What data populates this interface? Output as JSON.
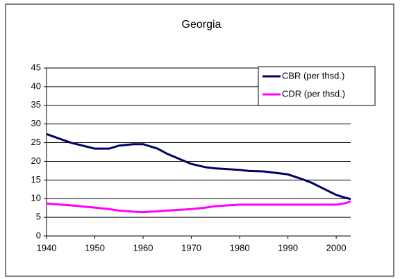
{
  "chart_data": {
    "type": "line",
    "title": "Georgia",
    "x": [
      1940,
      1945,
      1950,
      1953,
      1955,
      1958,
      1960,
      1963,
      1965,
      1970,
      1973,
      1975,
      1980,
      1982,
      1985,
      1990,
      1993,
      1995,
      2000,
      2002,
      2003
    ],
    "series": [
      {
        "name": "CBR (per thsd.)",
        "color": "#000066",
        "values": [
          27.3,
          25,
          23.4,
          23.4,
          24.2,
          24.6,
          24.6,
          23.4,
          22,
          19.3,
          18.4,
          18.1,
          17.7,
          17.4,
          17.3,
          16.5,
          15.2,
          14.2,
          11,
          10.2,
          9.9
        ]
      },
      {
        "name": "CDR (per thsd.)",
        "color": "#ff00ff",
        "values": [
          8.7,
          8.2,
          7.6,
          7.2,
          6.8,
          6.5,
          6.4,
          6.6,
          6.8,
          7.2,
          7.6,
          8,
          8.4,
          8.4,
          8.4,
          8.4,
          8.4,
          8.4,
          8.4,
          8.8,
          9.3
        ]
      }
    ],
    "xlim": [
      1940,
      2003
    ],
    "xticks": [
      1940,
      1950,
      1960,
      1970,
      1980,
      1990,
      2000
    ],
    "ylim": [
      0,
      45
    ],
    "yticks": [
      0,
      5,
      10,
      15,
      20,
      25,
      30,
      35,
      40,
      45
    ],
    "grid": true,
    "legend": "upper right"
  }
}
